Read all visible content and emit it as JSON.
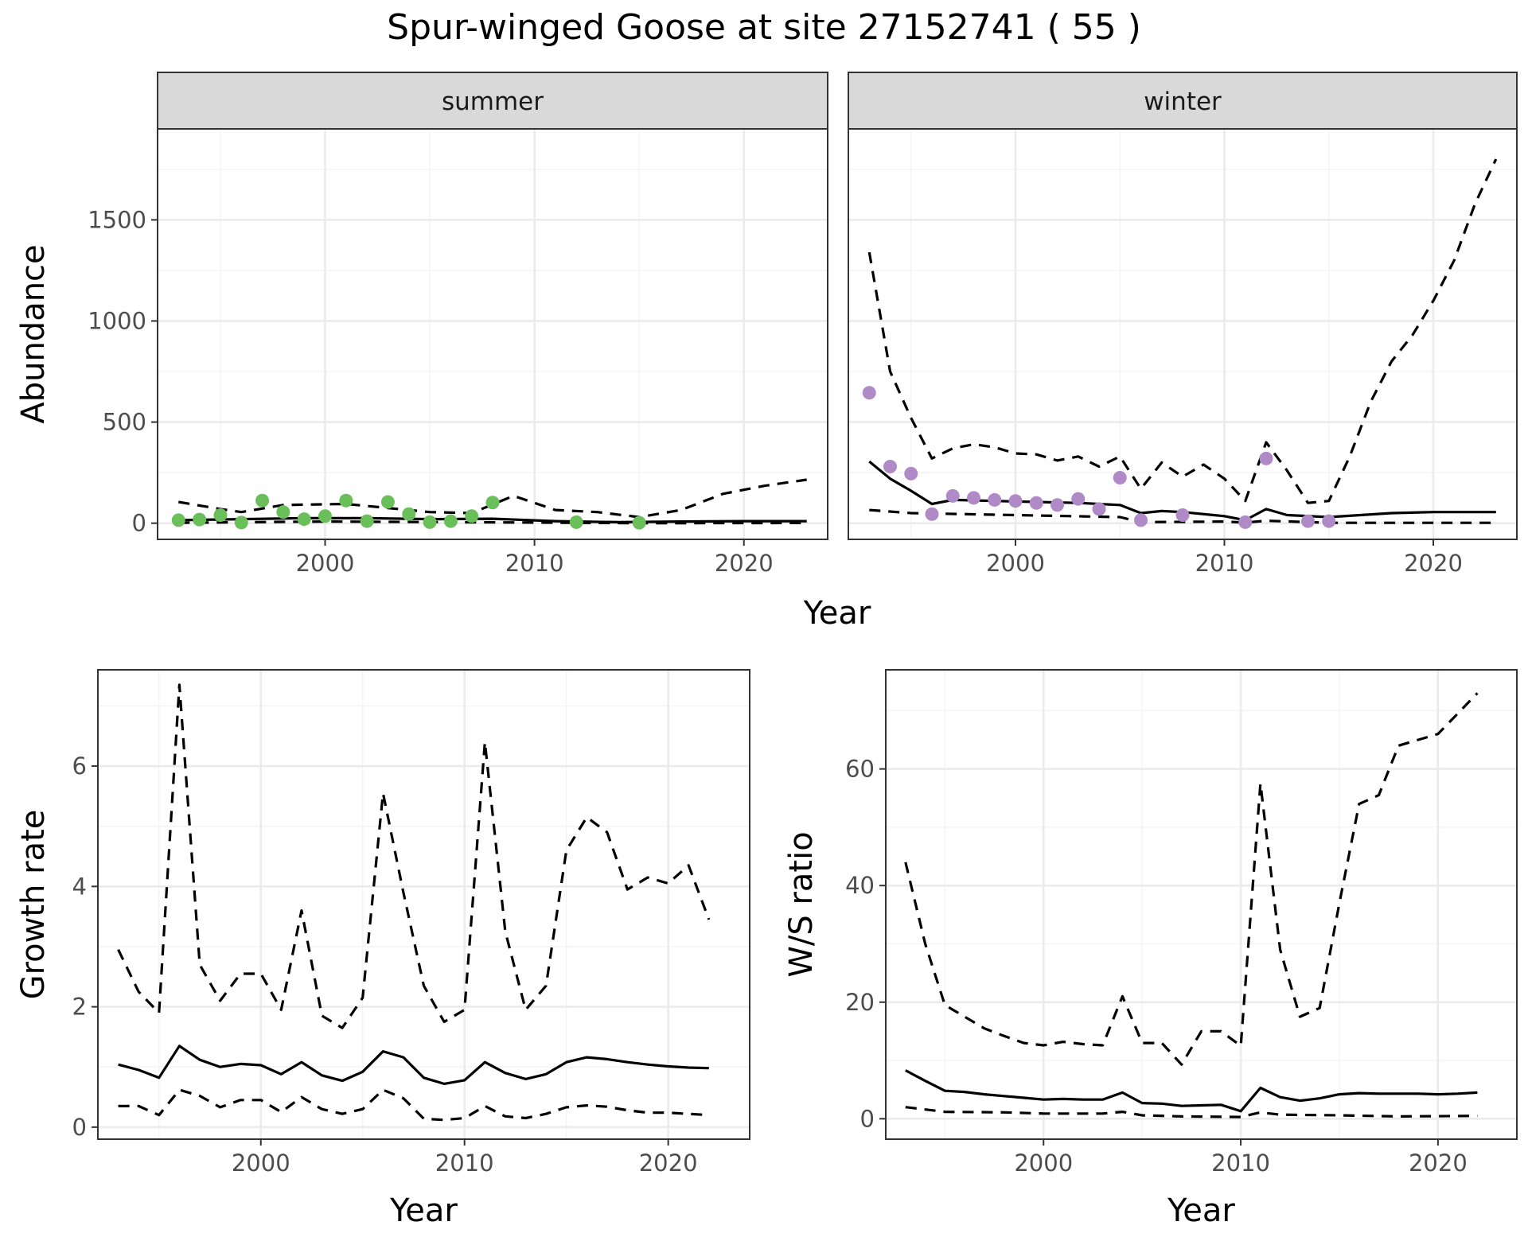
{
  "title": "Spur-winged Goose at site 27152741 ( 55 )",
  "colors": {
    "summer_points": "#6abf5a",
    "winter_points": "#b08ac6"
  },
  "chart_data": [
    {
      "id": "abundance",
      "type": "line+scatter (faceted)",
      "ylabel": "Abundance",
      "xlabel": "Year",
      "xlim": [
        1992,
        2024
      ],
      "ylim": [
        -80,
        1950
      ],
      "x_ticks": [
        2000,
        2010,
        2020
      ],
      "y_ticks": [
        0,
        500,
        1000,
        1500
      ],
      "grid": true,
      "facets": [
        {
          "label": "summer",
          "points": {
            "x": [
              1993,
              1994,
              1995,
              1996,
              1997,
              1998,
              1999,
              2000,
              2001,
              2002,
              2003,
              2004,
              2005,
              2006,
              2007,
              2008,
              2012,
              2015
            ],
            "y": [
              15,
              18,
              40,
              3,
              112,
              55,
              20,
              35,
              112,
              10,
              105,
              45,
              5,
              10,
              35,
              102,
              5,
              2
            ]
          },
          "estimate": {
            "x": [
              1993,
              1996,
              1999,
              2002,
              2005,
              2008,
              2011,
              2014,
              2017,
              2020,
              2023
            ],
            "y": [
              15,
              20,
              25,
              25,
              20,
              22,
              10,
              5,
              8,
              10,
              10
            ]
          },
          "upper": {
            "x": [
              1993,
              1995,
              1996,
              1998,
              2001,
              2003,
              2005,
              2007,
              2009,
              2011,
              2013,
              2015,
              2017,
              2019,
              2021,
              2023
            ],
            "y": [
              105,
              70,
              55,
              90,
              95,
              75,
              55,
              50,
              135,
              65,
              55,
              30,
              65,
              145,
              185,
              215
            ]
          },
          "lower": {
            "x": [
              1993,
              2000,
              2010,
              2015,
              2023
            ],
            "y": [
              2,
              8,
              3,
              0,
              1
            ]
          }
        },
        {
          "label": "winter",
          "points": {
            "x": [
              1993,
              1994,
              1995,
              1996,
              1997,
              1998,
              1999,
              2000,
              2001,
              2002,
              2003,
              2004,
              2005,
              2006,
              2008,
              2011,
              2012,
              2014,
              2015
            ],
            "y": [
              645,
              280,
              245,
              45,
              135,
              125,
              115,
              110,
              100,
              90,
              120,
              70,
              225,
              15,
              40,
              5,
              320,
              10,
              10
            ]
          },
          "estimate": {
            "x": [
              1993,
              1994,
              1995,
              1996,
              1997,
              1999,
              2001,
              2003,
              2005,
              2006,
              2007,
              2008,
              2010,
              2011,
              2012,
              2013,
              2015,
              2018,
              2020,
              2023
            ],
            "y": [
              305,
              220,
              160,
              95,
              115,
              110,
              105,
              100,
              90,
              50,
              60,
              55,
              35,
              15,
              70,
              40,
              30,
              50,
              55,
              55
            ]
          },
          "upper": {
            "x": [
              1993,
              1994,
              1995,
              1996,
              1997,
              1998,
              1999,
              2000,
              2001,
              2002,
              2003,
              2004,
              2005,
              2006,
              2007,
              2008,
              2009,
              2010,
              2011,
              2012,
              2013,
              2014,
              2015,
              2016,
              2017,
              2018,
              2019,
              2020,
              2021,
              2022,
              2023
            ],
            "y": [
              1340,
              750,
              520,
              320,
              370,
              390,
              375,
              345,
              340,
              310,
              330,
              280,
              330,
              170,
              300,
              230,
              290,
              220,
              110,
              400,
              260,
              100,
              110,
              330,
              600,
              800,
              930,
              1100,
              1300,
              1580,
              1800
            ]
          },
          "lower": {
            "x": [
              1993,
              1995,
              2000,
              2005,
              2006,
              2010,
              2011,
              2012,
              2015,
              2023
            ],
            "y": [
              65,
              50,
              40,
              30,
              5,
              8,
              3,
              12,
              2,
              2
            ]
          }
        }
      ]
    },
    {
      "id": "growth",
      "type": "line",
      "ylabel": "Growth rate",
      "xlabel": "Year",
      "xlim": [
        1992,
        2024
      ],
      "ylim": [
        -0.2,
        7.6
      ],
      "x_ticks": [
        2000,
        2010,
        2020
      ],
      "y_ticks": [
        0,
        2,
        4,
        6
      ],
      "grid": true,
      "estimate": {
        "x": [
          1993,
          1994,
          1995,
          1996,
          1997,
          1998,
          1999,
          2000,
          2001,
          2002,
          2003,
          2004,
          2005,
          2006,
          2007,
          2008,
          2009,
          2010,
          2011,
          2012,
          2013,
          2014,
          2015,
          2016,
          2017,
          2018,
          2019,
          2020,
          2021,
          2022
        ],
        "y": [
          1.04,
          0.95,
          0.82,
          1.35,
          1.12,
          1.0,
          1.05,
          1.03,
          0.88,
          1.08,
          0.86,
          0.77,
          0.92,
          1.26,
          1.16,
          0.82,
          0.72,
          0.78,
          1.08,
          0.9,
          0.8,
          0.88,
          1.08,
          1.16,
          1.13,
          1.08,
          1.04,
          1.01,
          0.99,
          0.98
        ]
      },
      "upper": {
        "x": [
          1993,
          1994,
          1995,
          1996,
          1997,
          1998,
          1999,
          2000,
          2001,
          2002,
          2003,
          2004,
          2005,
          2006,
          2007,
          2008,
          2009,
          2010,
          2011,
          2012,
          2013,
          2014,
          2015,
          2016,
          2017,
          2018,
          2019,
          2020,
          2021,
          2022
        ],
        "y": [
          2.95,
          2.25,
          1.9,
          7.35,
          2.7,
          2.1,
          2.55,
          2.55,
          1.95,
          3.6,
          1.85,
          1.65,
          2.15,
          5.55,
          3.9,
          2.35,
          1.75,
          1.95,
          6.4,
          3.25,
          1.95,
          2.35,
          4.6,
          5.15,
          4.9,
          3.95,
          4.15,
          4.05,
          4.35,
          3.45
        ]
      },
      "lower": {
        "x": [
          1993,
          1994,
          1995,
          1996,
          1997,
          1998,
          1999,
          2000,
          2001,
          2002,
          2003,
          2004,
          2005,
          2006,
          2007,
          2008,
          2009,
          2010,
          2011,
          2012,
          2013,
          2014,
          2015,
          2016,
          2017,
          2018,
          2019,
          2020,
          2021,
          2022
        ],
        "y": [
          0.35,
          0.35,
          0.2,
          0.62,
          0.52,
          0.33,
          0.45,
          0.45,
          0.25,
          0.5,
          0.3,
          0.22,
          0.3,
          0.62,
          0.48,
          0.14,
          0.12,
          0.15,
          0.35,
          0.18,
          0.15,
          0.22,
          0.33,
          0.36,
          0.34,
          0.28,
          0.24,
          0.24,
          0.22,
          0.2
        ]
      }
    },
    {
      "id": "ratio",
      "type": "line",
      "ylabel": "W/S ratio",
      "xlabel": "Year",
      "xlim": [
        1992,
        2024
      ],
      "ylim": [
        -3.5,
        77
      ],
      "x_ticks": [
        2000,
        2010,
        2020
      ],
      "y_ticks": [
        0,
        20,
        40,
        60
      ],
      "grid": true,
      "estimate": {
        "x": [
          1993,
          1994,
          1995,
          1996,
          1997,
          1998,
          1999,
          2000,
          2001,
          2002,
          2003,
          2004,
          2005,
          2006,
          2007,
          2008,
          2009,
          2010,
          2011,
          2012,
          2013,
          2014,
          2015,
          2016,
          2017,
          2018,
          2019,
          2020,
          2021,
          2022
        ],
        "y": [
          8.3,
          6.5,
          4.8,
          4.6,
          4.2,
          3.9,
          3.6,
          3.3,
          3.4,
          3.3,
          3.3,
          4.5,
          2.7,
          2.6,
          2.2,
          2.3,
          2.4,
          1.3,
          5.3,
          3.7,
          3.1,
          3.5,
          4.2,
          4.4,
          4.3,
          4.3,
          4.3,
          4.2,
          4.3,
          4.5
        ]
      },
      "upper": {
        "x": [
          1993,
          1994,
          1995,
          1996,
          1997,
          1998,
          1999,
          2000,
          2001,
          2002,
          2003,
          2004,
          2005,
          2006,
          2007,
          2008,
          2009,
          2010,
          2011,
          2012,
          2013,
          2014,
          2015,
          2016,
          2017,
          2018,
          2019,
          2020,
          2021,
          2022
        ],
        "y": [
          44,
          30,
          19.5,
          17.5,
          15.5,
          14.2,
          13,
          12.6,
          13.2,
          12.8,
          12.6,
          21,
          13,
          13,
          9.3,
          15,
          15,
          12.5,
          57.5,
          29,
          17.5,
          19,
          37,
          54,
          55.5,
          64,
          65,
          66,
          69.5,
          73
        ]
      },
      "lower": {
        "x": [
          1993,
          1995,
          1998,
          2000,
          2003,
          2004,
          2005,
          2007,
          2010,
          2011,
          2012,
          2015,
          2018,
          2022
        ],
        "y": [
          2.0,
          1.2,
          1.1,
          0.9,
          0.9,
          1.2,
          0.6,
          0.4,
          0.3,
          1.1,
          0.7,
          0.6,
          0.4,
          0.5
        ]
      }
    }
  ]
}
